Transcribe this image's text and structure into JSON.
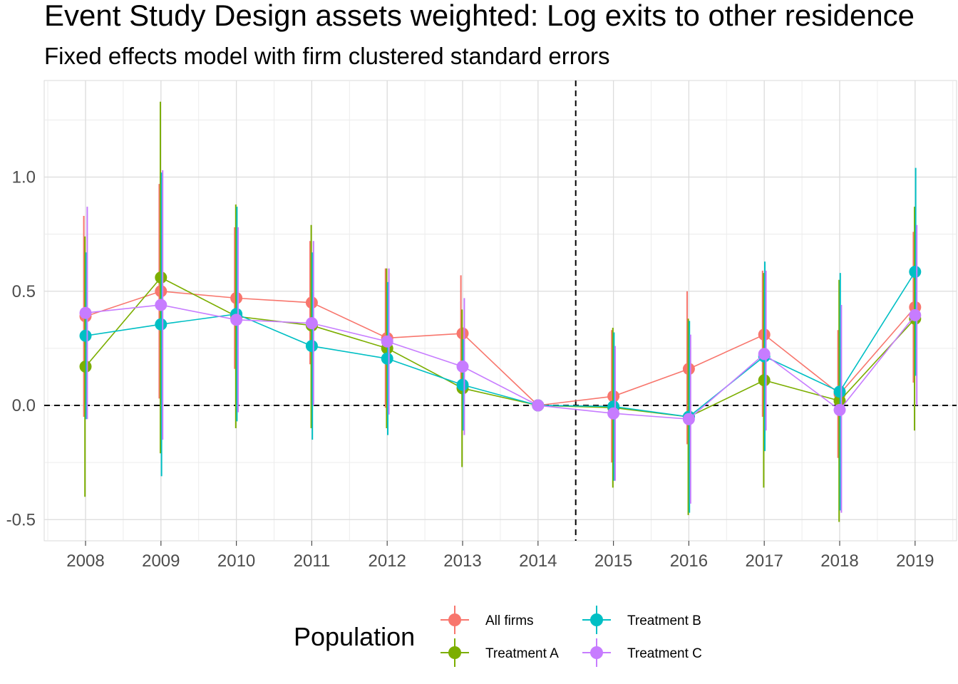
{
  "chart_data": {
    "type": "line",
    "title": "Event Study Design assets weighted: Log exits to other residence",
    "subtitle": "Fixed effects model with firm clustered standard errors",
    "xlabel": "",
    "ylabel": "",
    "x": [
      "2008",
      "2009",
      "2010",
      "2011",
      "2012",
      "2013",
      "2014",
      "2015",
      "2016",
      "2017",
      "2018",
      "2019"
    ],
    "y_ticks": [
      "-0.5",
      "0.0",
      "0.5",
      "1.0"
    ],
    "ylim": [
      -0.59,
      1.42
    ],
    "reference_lines": {
      "horizontal_y": 0.0,
      "vertical_between": [
        "2014",
        "2015"
      ]
    },
    "grid": true,
    "legend": {
      "title": "Population",
      "position": "bottom"
    },
    "series": [
      {
        "name": "All firms",
        "color": "#F8766D",
        "values": [
          0.39,
          0.5,
          0.47,
          0.45,
          0.295,
          0.315,
          0.0,
          0.04,
          0.16,
          0.31,
          0.05,
          0.43
        ],
        "lower": [
          -0.05,
          0.03,
          0.16,
          0.18,
          -0.01,
          0.06,
          0.0,
          -0.25,
          -0.17,
          -0.05,
          -0.23,
          0.1
        ],
        "upper": [
          0.83,
          0.97,
          0.78,
          0.72,
          0.6,
          0.57,
          0.0,
          0.33,
          0.5,
          0.59,
          0.33,
          0.76
        ]
      },
      {
        "name": "Treatment A",
        "color": "#7CAE00",
        "values": [
          0.17,
          0.56,
          0.39,
          0.35,
          0.25,
          0.075,
          0.0,
          -0.01,
          -0.05,
          0.11,
          0.02,
          0.38
        ],
        "lower": [
          -0.4,
          -0.21,
          -0.1,
          -0.1,
          -0.1,
          -0.27,
          0.0,
          -0.36,
          -0.48,
          -0.36,
          -0.51,
          -0.11
        ],
        "upper": [
          0.74,
          1.33,
          0.88,
          0.79,
          0.6,
          0.42,
          0.0,
          0.34,
          0.38,
          0.58,
          0.55,
          0.87
        ]
      },
      {
        "name": "Treatment B",
        "color": "#00BFC4",
        "values": [
          0.305,
          0.355,
          0.4,
          0.26,
          0.205,
          0.09,
          0.0,
          -0.005,
          -0.05,
          0.215,
          0.06,
          0.585
        ],
        "lower": [
          -0.06,
          -0.31,
          -0.07,
          -0.15,
          -0.13,
          -0.11,
          0.0,
          -0.33,
          -0.47,
          -0.2,
          -0.46,
          0.13
        ],
        "upper": [
          0.67,
          1.02,
          0.87,
          0.67,
          0.54,
          0.29,
          0.0,
          0.32,
          0.37,
          0.63,
          0.58,
          1.04
        ]
      },
      {
        "name": "Treatment C",
        "color": "#C77CFF",
        "values": [
          0.405,
          0.44,
          0.375,
          0.36,
          0.28,
          0.17,
          0.0,
          -0.035,
          -0.06,
          0.225,
          -0.02,
          0.395
        ],
        "lower": [
          -0.06,
          -0.15,
          -0.03,
          0.0,
          -0.04,
          -0.13,
          0.0,
          -0.33,
          -0.43,
          -0.11,
          -0.47,
          0.0
        ],
        "upper": [
          0.87,
          1.03,
          0.78,
          0.72,
          0.6,
          0.47,
          0.0,
          0.26,
          0.31,
          0.59,
          0.44,
          0.79
        ]
      }
    ]
  }
}
